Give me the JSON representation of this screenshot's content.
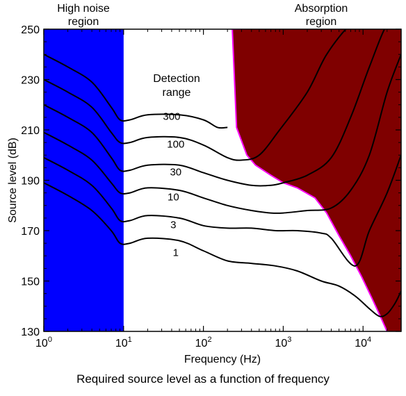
{
  "chart_data": {
    "type": "line",
    "title": "",
    "xlabel": "Frequency (Hz)",
    "ylabel": "Source level (dB)",
    "x_scale": "log",
    "xlim": [
      1,
      30000
    ],
    "ylim": [
      130,
      250
    ],
    "x_ticks": [
      1,
      10,
      100,
      1000,
      10000
    ],
    "x_tick_labels": [
      {
        "base": "10",
        "exp": "0"
      },
      {
        "base": "10",
        "exp": "1"
      },
      {
        "base": "10",
        "exp": "2"
      },
      {
        "base": "10",
        "exp": "3"
      },
      {
        "base": "10",
        "exp": "4"
      }
    ],
    "y_ticks": [
      130,
      150,
      170,
      190,
      210,
      230,
      250
    ],
    "regions": {
      "high_noise": {
        "label_line1": "High noise",
        "label_line2": "region",
        "x_range": [
          1,
          10
        ],
        "color": "#0000ff"
      },
      "absorption": {
        "label_line1": "Absorption",
        "label_line2": "region",
        "color": "#7f0000",
        "edge_color": "#ff00ff",
        "boundary": [
          [
            230,
            250
          ],
          [
            260,
            211
          ],
          [
            350,
            200
          ],
          [
            450,
            196
          ],
          [
            700,
            192
          ],
          [
            1000,
            189
          ],
          [
            1500,
            187
          ],
          [
            2500,
            183
          ],
          [
            3500,
            177
          ],
          [
            5000,
            168
          ],
          [
            7000,
            160
          ],
          [
            9500,
            152
          ],
          [
            13000,
            143
          ],
          [
            17000,
            135
          ],
          [
            20000,
            130
          ]
        ]
      }
    },
    "detection_range_label_line1": "Detection",
    "detection_range_label_line2": "range",
    "series": [
      {
        "name": "300",
        "x": [
          1,
          2,
          4,
          7,
          9,
          12,
          20,
          50,
          100,
          150,
          200
        ],
        "y": [
          240,
          235,
          229,
          219,
          214,
          214,
          216,
          216,
          214,
          211,
          211
        ]
      },
      {
        "name": "100",
        "x": [
          1,
          2,
          4,
          7,
          9,
          12,
          20,
          50,
          100,
          200,
          300,
          500,
          900,
          2000,
          3500,
          7000,
          12000,
          20000,
          30000
        ],
        "y": [
          230,
          225,
          219,
          209,
          205,
          205,
          207,
          207,
          204,
          199,
          198,
          200,
          210,
          225,
          240,
          252,
          256,
          256,
          256
        ]
      },
      {
        "name": "30",
        "x": [
          1,
          2,
          4,
          7,
          9,
          12,
          20,
          50,
          100,
          200,
          400,
          700,
          1000,
          2000,
          4000,
          7000,
          12000,
          20000,
          30000
        ],
        "y": [
          220,
          215,
          209,
          199,
          194,
          194,
          196,
          196,
          193,
          190,
          188,
          188,
          189,
          192,
          199,
          215,
          235,
          252,
          256
        ]
      },
      {
        "name": "10",
        "x": [
          1,
          2,
          4,
          7,
          9,
          12,
          20,
          50,
          100,
          200,
          400,
          700,
          1000,
          2000,
          4000,
          7000,
          12000,
          20000,
          30000
        ],
        "y": [
          209,
          204,
          198,
          189,
          185,
          185,
          187,
          186,
          183,
          180,
          178,
          177,
          177,
          178,
          179,
          186,
          200,
          225,
          240
        ]
      },
      {
        "name": "3",
        "x": [
          1,
          2,
          4,
          7,
          9,
          12,
          20,
          50,
          100,
          200,
          400,
          800,
          1500,
          3000,
          4000,
          8000,
          12000,
          20000,
          30000
        ],
        "y": [
          199,
          194,
          188,
          179,
          174,
          174,
          176,
          175,
          172,
          171,
          171,
          170,
          170,
          169,
          167,
          156,
          170,
          185,
          200
        ]
      },
      {
        "name": "1",
        "x": [
          1,
          2,
          4,
          7,
          9,
          12,
          20,
          50,
          100,
          200,
          400,
          800,
          1500,
          3000,
          5000,
          8000,
          12000,
          16000,
          20000,
          25000,
          30000
        ],
        "y": [
          189,
          184,
          178,
          170,
          165,
          165,
          167,
          166,
          162,
          158,
          157,
          156,
          154,
          150,
          148,
          144,
          139,
          136,
          137,
          141,
          146
        ]
      }
    ],
    "series_label_positions": [
      {
        "name": "300",
        "x": 40,
        "y": 214
      },
      {
        "name": "100",
        "x": 45,
        "y": 203
      },
      {
        "name": "30",
        "x": 45,
        "y": 192
      },
      {
        "name": "10",
        "x": 42,
        "y": 182
      },
      {
        "name": "3",
        "x": 42,
        "y": 171
      },
      {
        "name": "1",
        "x": 45,
        "y": 160
      }
    ],
    "grid": false,
    "legend": "none"
  },
  "caption": "Required source level as a function of frequency"
}
